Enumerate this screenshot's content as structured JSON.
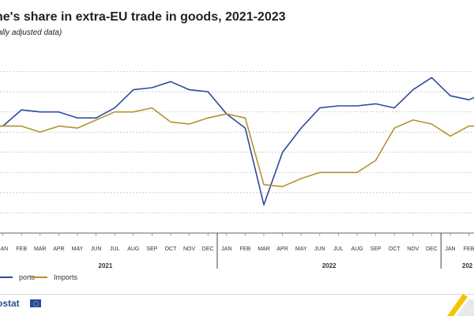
{
  "title": "ne's share in extra-EU trade in goods, 2021-2023",
  "subtitle": "onally adjusted data)",
  "legend": {
    "exports_label": "ports",
    "imports_label": "Imports"
  },
  "footer": {
    "source_label": "ostat"
  },
  "colors": {
    "exports": "#2f4a9d",
    "imports": "#b5922f",
    "grid": "#bdbdbd",
    "axis_text": "#333333"
  },
  "chart_data": {
    "type": "line",
    "title": "ne's share in extra-EU trade in goods, 2021-2023",
    "subtitle": "onally adjusted data)",
    "grid": true,
    "legend_placement": "bottom-left",
    "categories": [
      "DEC",
      "JAN",
      "FEB",
      "MAR",
      "APR",
      "MAY",
      "JUN",
      "JUL",
      "AUG",
      "SEP",
      "OCT",
      "NOV",
      "DEC",
      "JAN",
      "FEB",
      "MAR",
      "APR",
      "MAY",
      "JUN",
      "JUL",
      "AUG",
      "SEP",
      "OCT",
      "NOV",
      "DEC",
      "JAN",
      "FEB",
      "MAR"
    ],
    "x_tick_labels": [
      "JAN",
      "FEB",
      "MAR",
      "APR",
      "MAY",
      "JUN",
      "JUL",
      "AUG",
      "SEP",
      "OCT",
      "NOV",
      "DEC",
      "JAN",
      "FEB",
      "MAR",
      "APR",
      "MAY",
      "JUN",
      "JUL",
      "AUG",
      "SEP",
      "OCT",
      "NOV",
      "DEC",
      "JAN",
      "FEB"
    ],
    "year_labels": [
      "2021",
      "2022",
      "202"
    ],
    "ylim": [
      0,
      9
    ],
    "y_grid_values": [
      1,
      2,
      3,
      4,
      5,
      6,
      7,
      8
    ],
    "series": [
      {
        "name": "ports",
        "values": [
          5.3,
          5.3,
          6.1,
          6.0,
          6.0,
          5.7,
          5.7,
          6.2,
          7.1,
          7.2,
          7.5,
          7.1,
          7.0,
          5.9,
          5.2,
          1.4,
          4.0,
          5.2,
          6.2,
          6.3,
          6.3,
          6.4,
          6.2,
          7.1,
          7.7,
          6.8,
          6.6,
          7.0
        ]
      },
      {
        "name": "Imports",
        "values": [
          5.3,
          5.3,
          5.3,
          5.0,
          5.3,
          5.2,
          5.6,
          6.0,
          6.0,
          6.2,
          5.5,
          5.4,
          5.7,
          5.9,
          5.7,
          2.4,
          2.3,
          2.7,
          3.0,
          3.0,
          3.0,
          3.6,
          5.2,
          5.6,
          5.4,
          4.8,
          5.3,
          5.3
        ]
      }
    ]
  }
}
